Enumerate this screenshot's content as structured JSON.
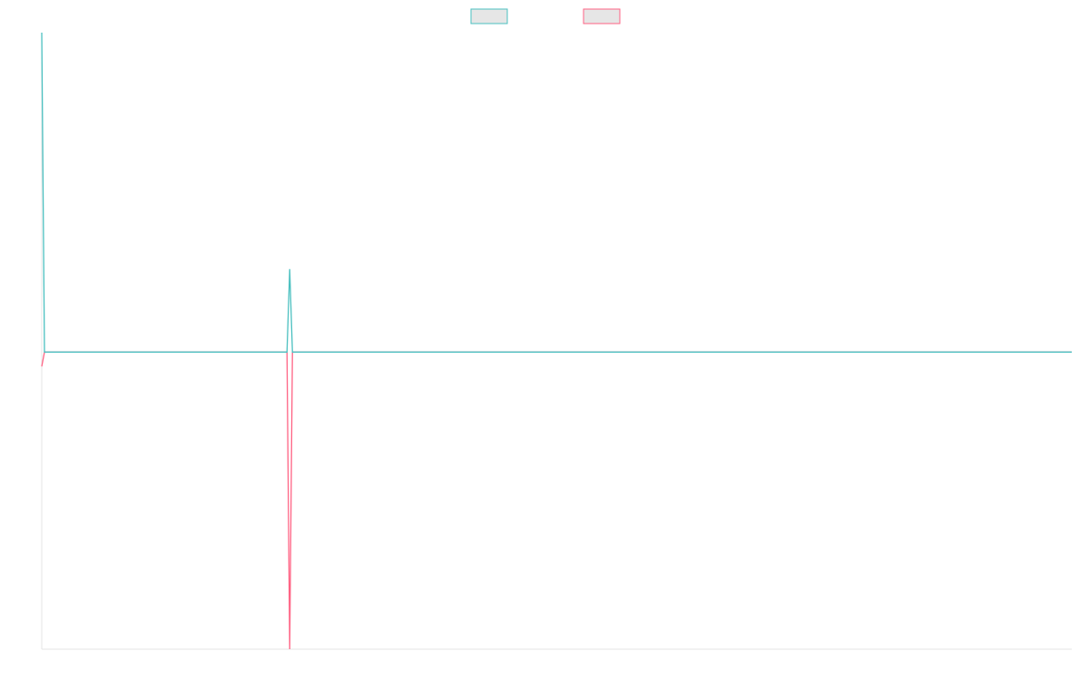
{
  "chart_data": {
    "type": "line",
    "x": [
      0,
      1,
      90,
      91,
      92,
      378
    ],
    "xlim": [
      0,
      378
    ],
    "ylim": [
      -93,
      100
    ],
    "series": [
      {
        "color": "#4bc0c0",
        "values": [
          100,
          0,
          0,
          26,
          0,
          0
        ]
      },
      {
        "color": "#ff6384",
        "values": [
          -4.5,
          0,
          0,
          -93,
          0,
          0
        ]
      }
    ],
    "legend": "top"
  }
}
